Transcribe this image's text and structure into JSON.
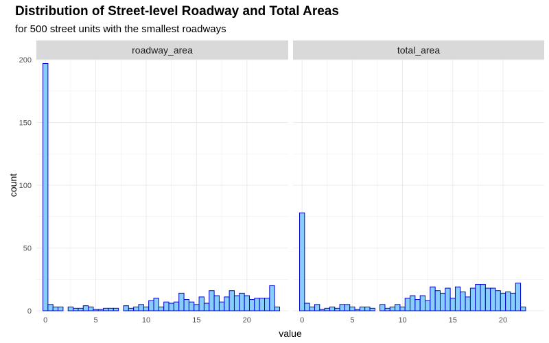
{
  "title": "Distribution of Street-level Roadway and Total Areas",
  "subtitle": "for 500 street units with the smallest roadways",
  "colors": {
    "fill": "#87CEFA",
    "stroke": "#0000CD",
    "strip": "#D9D9D9",
    "grid": "#EBEBEB"
  },
  "chart_data": {
    "type": "bar",
    "xlabel": "value",
    "ylabel": "count",
    "ylim": [
      0,
      200
    ],
    "yticks": [
      0,
      50,
      100,
      150,
      200
    ],
    "xticks": [
      0,
      5,
      10,
      15,
      20
    ],
    "xlim": [
      -0.9,
      24.1
    ],
    "bin_width": 0.5,
    "bin_start": 0,
    "grid": true,
    "panels": [
      {
        "name": "roadway_area",
        "counts": [
          197,
          5,
          3,
          3,
          0,
          3,
          2,
          2,
          4,
          3,
          1,
          1,
          2,
          2,
          2,
          0,
          4,
          2,
          3,
          5,
          3,
          8,
          10,
          3,
          7,
          6,
          7,
          14,
          9,
          7,
          5,
          11,
          6,
          16,
          12,
          7,
          11,
          16,
          12,
          14,
          12,
          9,
          10,
          10,
          10,
          20,
          3
        ]
      },
      {
        "name": "total_area",
        "counts": [
          78,
          6,
          3,
          5,
          1,
          2,
          3,
          2,
          5,
          5,
          3,
          1,
          3,
          3,
          2,
          0,
          5,
          2,
          3,
          5,
          3,
          10,
          12,
          9,
          12,
          8,
          19,
          16,
          14,
          18,
          10,
          19,
          15,
          11,
          18,
          21,
          21,
          18,
          18,
          16,
          14,
          15,
          14,
          22,
          3
        ]
      }
    ]
  }
}
